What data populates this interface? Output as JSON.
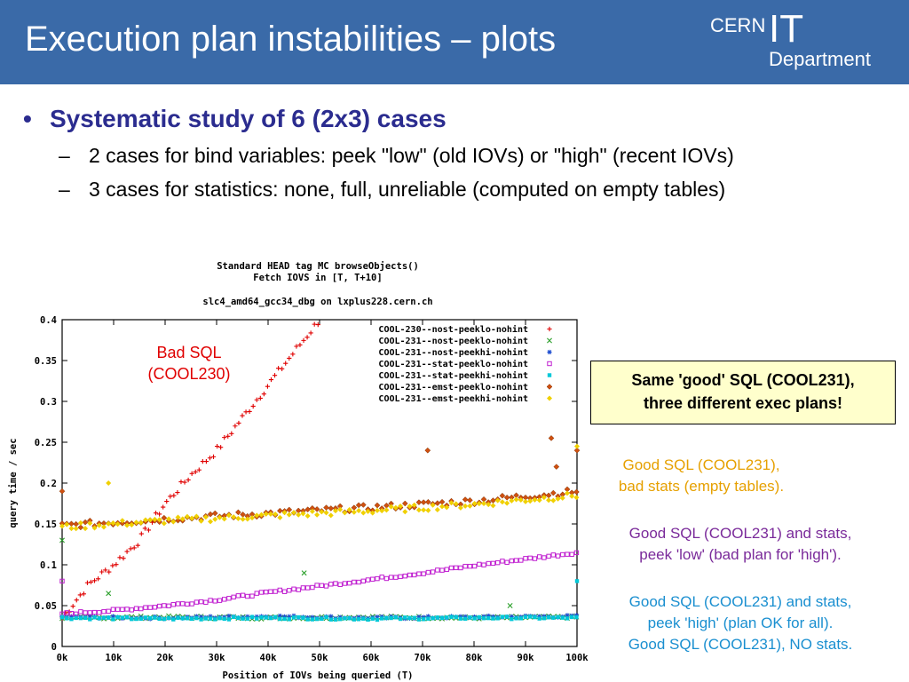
{
  "slide": {
    "title": "Execution plan instabilities – plots",
    "logo": {
      "top": "CERN",
      "big": "IT",
      "bottom": "Department"
    },
    "bullets": [
      "Systematic study of 6 (2x3) cases"
    ],
    "subbullets": [
      "2 cases for bind variables: peek \"low\" (old IOVs) or \"high\" (recent IOVs)",
      "3 cases for statistics: none, full, unreliable (computed on empty tables)"
    ],
    "annotations": {
      "bad_sql": [
        "Bad SQL",
        "(COOL230)"
      ],
      "callout": [
        "Same 'good' SQL (COOL231),",
        "three different exec plans!"
      ],
      "note_orange": [
        "Good SQL (COOL231),",
        "bad stats (empty tables)."
      ],
      "note_purple": [
        "Good SQL (COOL231) and stats,",
        "peek 'low' (bad plan for 'high')."
      ],
      "note_cyan": [
        "Good SQL (COOL231) and stats,",
        "peek 'high' (plan OK for all).",
        "Good SQL (COOL231), NO stats."
      ]
    },
    "colors": {
      "header": "#3a6aa8",
      "bullet_blue": "#2b2c8f",
      "bad_sql_red": "#e00000",
      "orange_note": "#e6a000",
      "purple_note": "#7a2a9a",
      "cyan_note": "#1a8fd0",
      "callout_fill": "#ffffcc"
    }
  },
  "chart_data": {
    "type": "scatter",
    "title": [
      "Standard HEAD tag MC browseObjects()",
      "Fetch IOVS in [T, T+10]",
      "slc4_amd64_gcc34_dbg on lxplus228.cern.ch"
    ],
    "xlabel": "Position of IOVs being queried (T)",
    "ylabel": "query time / sec",
    "xlim": [
      0,
      100000
    ],
    "ylim": [
      0,
      0.4
    ],
    "xticks": [
      0,
      10000,
      20000,
      30000,
      40000,
      50000,
      60000,
      70000,
      80000,
      90000,
      100000
    ],
    "xtick_labels": [
      "0k",
      "10k",
      "20k",
      "30k",
      "40k",
      "50k",
      "60k",
      "70k",
      "80k",
      "90k",
      "100k"
    ],
    "yticks": [
      0,
      0.05,
      0.1,
      0.15,
      0.2,
      0.25,
      0.3,
      0.35,
      0.4
    ],
    "ytick_labels": [
      "0",
      "0.05",
      "0.1",
      "0.15",
      "0.2",
      "0.25",
      "0.3",
      "0.35",
      "0.4"
    ],
    "legend_position": "top-right",
    "grid": false,
    "series": [
      {
        "name": "COOL-230--nost-peeklo-nohint",
        "marker": "plus",
        "color": "#e00000",
        "x": [
          0,
          5000,
          10000,
          15000,
          20000,
          25000,
          30000,
          35000,
          40000,
          45000,
          50000
        ],
        "y": [
          0.035,
          0.075,
          0.1,
          0.13,
          0.175,
          0.21,
          0.24,
          0.28,
          0.32,
          0.36,
          0.4
        ]
      },
      {
        "name": "COOL-231--nost-peeklo-nohint",
        "marker": "cross",
        "color": "#2ca02c",
        "x": [
          0,
          20000,
          40000,
          60000,
          80000,
          100000
        ],
        "y": [
          0.035,
          0.036,
          0.035,
          0.036,
          0.035,
          0.036
        ]
      },
      {
        "name": "COOL-231--nost-peekhi-nohint",
        "marker": "star",
        "color": "#1f4fd0",
        "x": [
          0,
          20000,
          40000,
          60000,
          80000,
          100000
        ],
        "y": [
          0.036,
          0.035,
          0.037,
          0.035,
          0.036,
          0.037
        ]
      },
      {
        "name": "COOL-231--stat-peeklo-nohint",
        "marker": "square",
        "color": "#c020d0",
        "x": [
          0,
          10000,
          20000,
          30000,
          40000,
          50000,
          60000,
          70000,
          80000,
          90000,
          100000
        ],
        "y": [
          0.04,
          0.044,
          0.05,
          0.057,
          0.066,
          0.074,
          0.082,
          0.09,
          0.099,
          0.107,
          0.115
        ]
      },
      {
        "name": "COOL-231--stat-peekhi-nohint",
        "marker": "filled-square",
        "color": "#00c8d8",
        "x": [
          0,
          20000,
          40000,
          60000,
          80000,
          100000
        ],
        "y": [
          0.035,
          0.034,
          0.035,
          0.034,
          0.035,
          0.035
        ]
      },
      {
        "name": "COOL-231--emst-peeklo-nohint",
        "marker": "diamond",
        "color": "#d05010",
        "x": [
          0,
          20000,
          40000,
          60000,
          80000,
          100000
        ],
        "y": [
          0.148,
          0.156,
          0.163,
          0.17,
          0.178,
          0.19
        ]
      },
      {
        "name": "COOL-231--emst-peekhi-nohint",
        "marker": "filled-diamond",
        "color": "#f0d000",
        "x": [
          0,
          20000,
          40000,
          60000,
          80000,
          100000
        ],
        "y": [
          0.146,
          0.154,
          0.16,
          0.166,
          0.174,
          0.185
        ]
      }
    ],
    "outliers": {
      "COOL-231--nost-peeklo-nohint": {
        "x": [
          0,
          9000,
          47000,
          87000
        ],
        "y": [
          0.13,
          0.065,
          0.09,
          0.05
        ]
      },
      "COOL-231--stat-peekhi-nohint": {
        "x": [
          100000
        ],
        "y": [
          0.08
        ]
      },
      "COOL-231--stat-peeklo-nohint": {
        "x": [
          0
        ],
        "y": [
          0.08
        ]
      },
      "COOL-231--emst-peeklo-nohint": {
        "x": [
          0,
          71000,
          95000,
          96000,
          100000
        ],
        "y": [
          0.19,
          0.24,
          0.255,
          0.22,
          0.24
        ]
      },
      "COOL-231--emst-peekhi-nohint": {
        "x": [
          9000,
          100000
        ],
        "y": [
          0.2,
          0.245
        ]
      }
    }
  }
}
